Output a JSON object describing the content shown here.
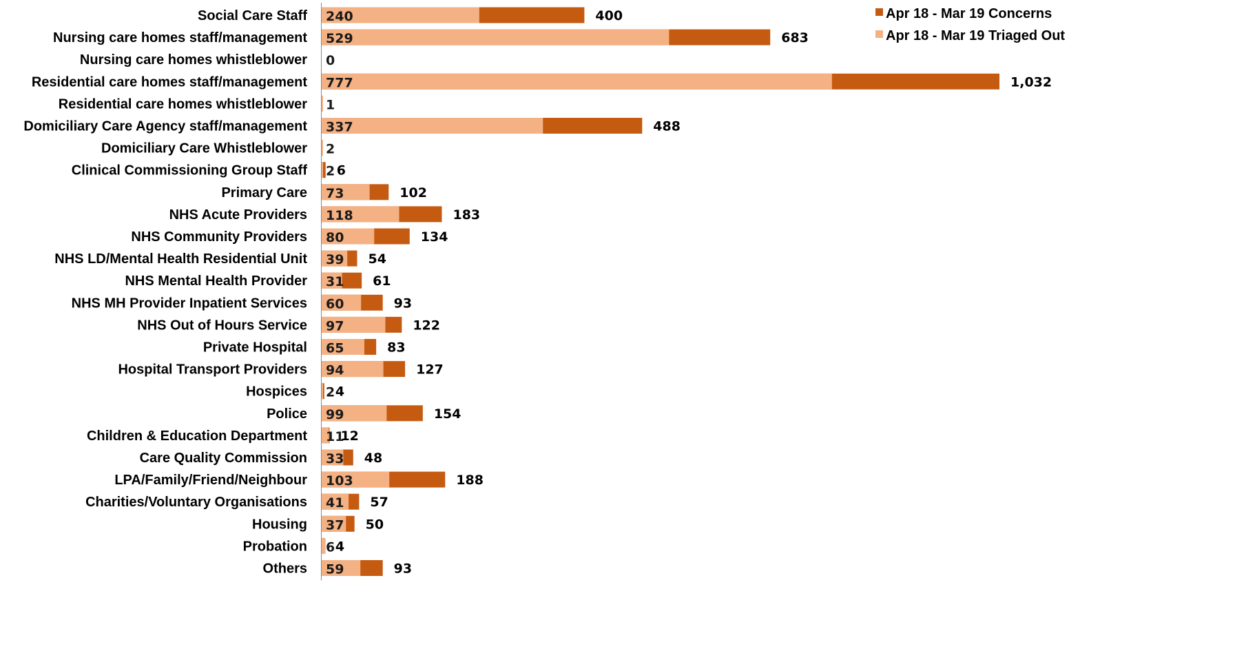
{
  "chart_data": {
    "type": "bar",
    "orientation": "horizontal",
    "stacking": "overlay",
    "categories": [
      "Social Care Staff",
      "Nursing care homes staff/management",
      "Nursing care homes whistleblower",
      "Residential care homes staff/management",
      "Residential care homes whistleblower",
      "Domiciliary Care Agency staff/management",
      "Domiciliary Care Whistleblower",
      "Clinical Commissioning Group Staff",
      "Primary Care",
      "NHS Acute Providers",
      "NHS Community Providers",
      "NHS LD/Mental Health Residential Unit",
      "NHS Mental Health Provider",
      "NHS MH Provider Inpatient Services",
      "NHS Out of Hours Service",
      "Private Hospital",
      "Hospital Transport Providers",
      "Hospices",
      "Police",
      "Children & Education Department",
      "Care Quality Commission",
      "LPA/Family/Friend/Neighbour",
      "Charities/Voluntary Organisations",
      "Housing",
      "Probation",
      "Others"
    ],
    "series": [
      {
        "name": "Apr 18 - Mar 19 Concerns",
        "color": "#c55a11",
        "values": [
          400,
          683,
          0,
          1032,
          1,
          488,
          2,
          6,
          102,
          183,
          134,
          54,
          61,
          93,
          122,
          83,
          127,
          4,
          154,
          12,
          48,
          188,
          57,
          50,
          4,
          93
        ],
        "labels": [
          "400",
          "683",
          "",
          "1,032",
          "",
          "488",
          "",
          "6",
          "102",
          "183",
          "134",
          "54",
          "61",
          "93",
          "122",
          "83",
          "127",
          "4",
          "154",
          "12",
          "48",
          "188",
          "57",
          "50",
          "4",
          "93"
        ]
      },
      {
        "name": "Apr 18 - Mar 19 Triaged Out",
        "color": "#f4b183",
        "values": [
          240,
          529,
          0,
          777,
          1,
          337,
          2,
          2,
          73,
          118,
          80,
          39,
          31,
          60,
          97,
          65,
          94,
          2,
          99,
          11,
          33,
          103,
          41,
          37,
          6,
          59
        ],
        "labels": [
          "240",
          "529",
          "0",
          "777",
          "1",
          "337",
          "2",
          "2",
          "73",
          "118",
          "80",
          "39",
          "31",
          "60",
          "97",
          "65",
          "94",
          "2",
          "99",
          "11",
          "33",
          "103",
          "41",
          "37",
          "6",
          "59"
        ]
      }
    ],
    "xlim": [
      0,
      1100
    ],
    "legend": "top-right",
    "grid": false
  }
}
